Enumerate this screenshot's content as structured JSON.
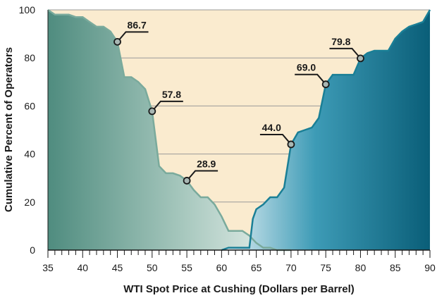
{
  "chart_data": {
    "type": "area",
    "title": "",
    "xlabel": "WTI Spot Price at Cushing (Dollars per Barrel)",
    "ylabel": "Cumulative Percent of Operators",
    "xlim": [
      35,
      90
    ],
    "ylim": [
      0,
      100
    ],
    "x_ticks": [
      35,
      40,
      45,
      50,
      55,
      60,
      65,
      70,
      75,
      80,
      85,
      90
    ],
    "y_ticks": [
      0,
      20,
      40,
      60,
      80,
      100
    ],
    "grid": "horizontal",
    "series": [
      {
        "color": "#7aaa9c",
        "x": [
          35,
          36,
          37,
          38,
          39,
          40,
          41,
          42,
          43,
          44,
          45,
          46,
          47,
          48,
          49,
          50,
          51,
          52,
          53,
          54,
          55,
          56,
          57,
          58,
          59,
          60,
          61,
          62,
          63,
          64,
          65,
          66,
          67,
          68,
          69,
          70
        ],
        "values": [
          100,
          98,
          98,
          98,
          97,
          97,
          95,
          93,
          93,
          91,
          86.7,
          72,
          72,
          70,
          67,
          57.8,
          35,
          32,
          32,
          31,
          28.9,
          25,
          22,
          22,
          19,
          14,
          8,
          8,
          8,
          6,
          3,
          1,
          1,
          0,
          0,
          0
        ],
        "labeled_points": [
          {
            "x": 45,
            "y": 86.7,
            "label": "86.7"
          },
          {
            "x": 50,
            "y": 57.8,
            "label": "57.8"
          },
          {
            "x": 55,
            "y": 28.9,
            "label": "28.9"
          }
        ]
      },
      {
        "color": "#1a7f96",
        "x": [
          60,
          61,
          62,
          63,
          64,
          64.5,
          65,
          66,
          67,
          68,
          69,
          70,
          71,
          72,
          73,
          74,
          75,
          76,
          77,
          78,
          79,
          80,
          81,
          82,
          83,
          84,
          85,
          86,
          87,
          88,
          89,
          90
        ],
        "values": [
          0,
          1,
          1,
          1,
          1,
          13,
          17,
          19,
          22,
          22,
          26,
          44,
          49,
          50,
          51,
          55,
          69,
          73,
          73,
          73,
          73,
          79.8,
          82,
          83,
          83,
          83,
          88,
          91,
          93,
          94,
          95,
          100
        ],
        "labeled_points": [
          {
            "x": 70,
            "y": 44.0,
            "label": "44.0"
          },
          {
            "x": 75,
            "y": 69.0,
            "label": "69.0"
          },
          {
            "x": 80,
            "y": 79.8,
            "label": "79.8"
          }
        ]
      }
    ]
  }
}
